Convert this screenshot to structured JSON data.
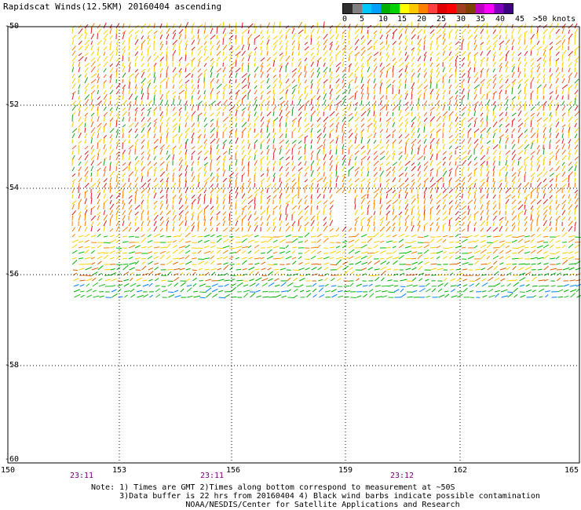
{
  "title": "Rapidscat Winds(12.5KM) 20160404 ascending",
  "legend": {
    "labels": [
      "0",
      "5",
      "10",
      "15",
      "20",
      "25",
      "30",
      "35",
      "40",
      "45",
      ">50 knots"
    ],
    "colors": [
      "#303030",
      "#808080",
      "#00c8ff",
      "#00a0ff",
      "#00b000",
      "#00d000",
      "#ffff00",
      "#ffc800",
      "#ff8000",
      "#ff4040",
      "#e00000",
      "#ff0000",
      "#a04020",
      "#804000",
      "#c000c0",
      "#ff00ff",
      "#8000c0",
      "#400080"
    ]
  },
  "axes": {
    "lat_labels": [
      "-50",
      "-52",
      "-54",
      "-56",
      "-58",
      "-60"
    ],
    "lon_labels": [
      "150",
      "153",
      "156",
      "159",
      "162",
      "165"
    ],
    "time_labels": [
      "23:11",
      "23:11",
      "23:12"
    ]
  },
  "notes": [
    "Note: 1) Times are GMT 2)Times along bottom correspond to measurement at ~50S",
    "      3)Data buffer is 22 hrs from 20160404 4) Black wind barbs indicate possible contamination",
    "                    NOAA/NESDIS/Center for Satellite Applications and Research"
  ]
}
